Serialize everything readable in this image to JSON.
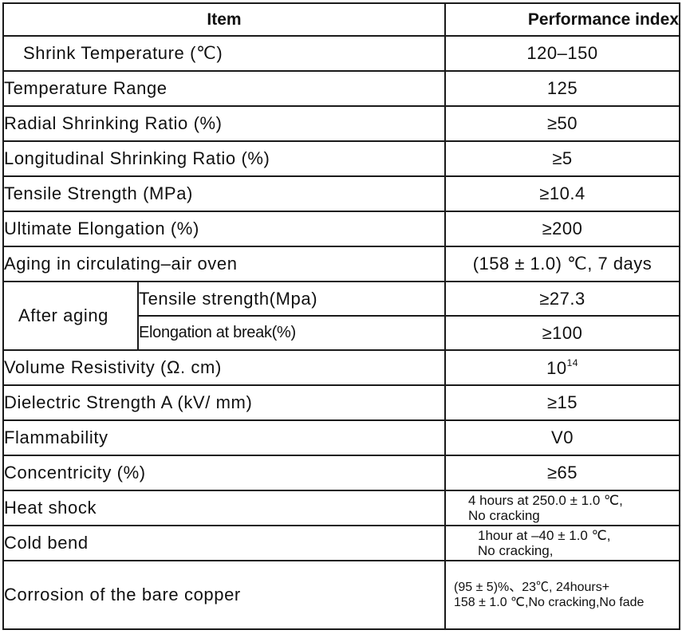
{
  "header": {
    "item": "Item",
    "performance": "Performance index"
  },
  "rows": [
    {
      "label": "Shrink Temperature (℃)",
      "value": "120–150"
    },
    {
      "label": "Temperature Range",
      "value": "125"
    },
    {
      "label": "Radial Shrinking Ratio (%)",
      "value": "≥50"
    },
    {
      "label": "Longitudinal Shrinking Ratio (%)",
      "value": "≥5"
    },
    {
      "label": "Tensile Strength (MPa)",
      "value": "≥10.4"
    },
    {
      "label": "Ultimate Elongation (%)",
      "value": "≥200"
    },
    {
      "label": "Aging in circulating–air oven",
      "value": "(158 ± 1.0) ℃, 7 days"
    }
  ],
  "after_aging": {
    "label": "After aging",
    "sub": [
      {
        "label": "Tensile strength(Mpa)",
        "value": "≥27.3"
      },
      {
        "label": "Elongation at break(%)",
        "value": "≥100"
      }
    ]
  },
  "volume_resistivity": {
    "label": "Volume Resistivity (Ω. cm)",
    "base": "10",
    "exponent": "14"
  },
  "rows2": [
    {
      "label": "Dielectric Strength A (kV/ mm)",
      "value": "≥15"
    },
    {
      "label": "Flammability",
      "value": "V0"
    },
    {
      "label": "Concentricity (%)",
      "value": "≥65"
    }
  ],
  "heat_shock": {
    "label": "Heat shock",
    "line1": "4 hours at 250.0 ± 1.0 ℃,",
    "line2": "No cracking"
  },
  "cold_bend": {
    "label": "Cold bend",
    "line1": "1hour at –40 ± 1.0 ℃,",
    "line2": "No cracking,"
  },
  "corrosion": {
    "label": "Corrosion of the bare copper",
    "line1": "(95 ± 5)%、23℃, 24hours+",
    "line2": "158 ± 1.0 ℃,No cracking,No fade"
  }
}
